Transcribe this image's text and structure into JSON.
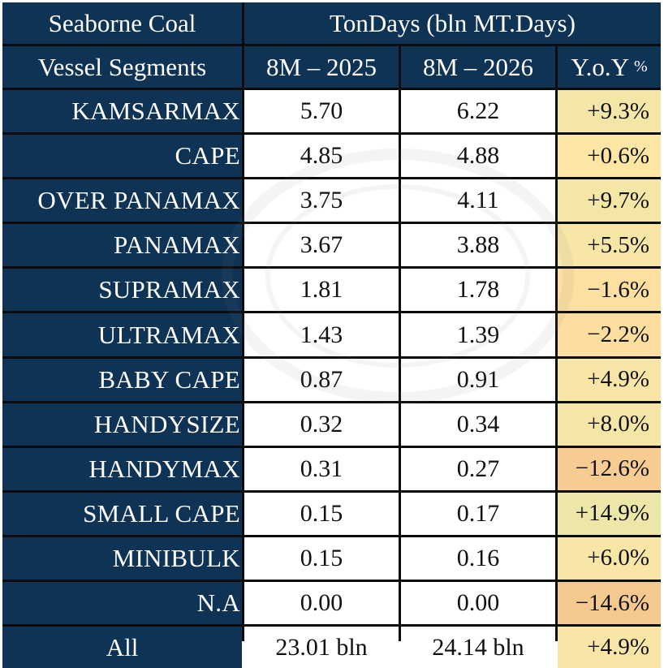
{
  "header": {
    "title_left": "Seaborne Coal",
    "title_right": "TonDays (bln MT.Days)",
    "col_segments": "Vessel Segments",
    "col_2025": "8M – 2025",
    "col_2026": "8M – 2026",
    "col_yoy": "Y.o.Y",
    "col_yoy_unit": "%"
  },
  "rows": [
    {
      "segment": "KAMSARMAX",
      "v2025": "5.70",
      "v2026": "6.22",
      "yoy": "+9.3%",
      "color": "#f3e6a6"
    },
    {
      "segment": "CAPE",
      "v2025": "4.85",
      "v2026": "4.88",
      "yoy": "+0.6%",
      "color": "#fde6a4"
    },
    {
      "segment": "OVER PANAMAX",
      "v2025": "3.75",
      "v2026": "4.11",
      "yoy": "+9.7%",
      "color": "#f3e6a6"
    },
    {
      "segment": "PANAMAX",
      "v2025": "3.67",
      "v2026": "3.88",
      "yoy": "+5.5%",
      "color": "#f8e6a6"
    },
    {
      "segment": "SUPRAMAX",
      "v2025": "1.81",
      "v2026": "1.78",
      "yoy": "-1.6%",
      "color": "#fddfa0"
    },
    {
      "segment": "ULTRAMAX",
      "v2025": "1.43",
      "v2026": "1.39",
      "yoy": "-2.2%",
      "color": "#fdde9f"
    },
    {
      "segment": "BABY CAPE",
      "v2025": "0.87",
      "v2026": "0.91",
      "yoy": "+4.9%",
      "color": "#f9e6a6"
    },
    {
      "segment": "HANDYSIZE",
      "v2025": "0.32",
      "v2026": "0.34",
      "yoy": "+8.0%",
      "color": "#f5e6a6"
    },
    {
      "segment": "HANDYMAX",
      "v2025": "0.31",
      "v2026": "0.27",
      "yoy": "-12.6%",
      "color": "#f6cc93"
    },
    {
      "segment": "SMALL CAPE",
      "v2025": "0.15",
      "v2026": "0.17",
      "yoy": "+14.9%",
      "color": "#ece6a8"
    },
    {
      "segment": "MINIBULK",
      "v2025": "0.15",
      "v2026": "0.16",
      "yoy": "+6.0%",
      "color": "#f7e6a6"
    },
    {
      "segment": "N.A",
      "v2025": "0.00",
      "v2026": "0.00",
      "yoy": "-14.6%",
      "color": "#f4c990"
    }
  ],
  "total": {
    "label": "All",
    "v2025": "23.01  bln",
    "v2026": "24.14  bln",
    "yoy": "+4.9%",
    "color": "#f9e6a6"
  }
}
